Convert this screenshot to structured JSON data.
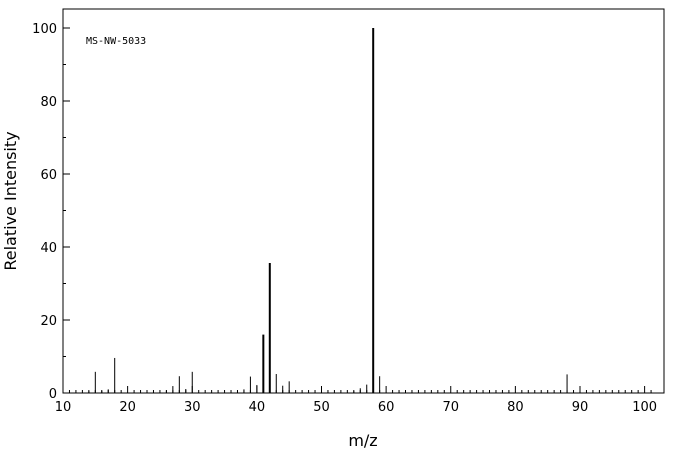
{
  "chart_data": {
    "type": "bar",
    "annotation": "MS-NW-5033",
    "xlabel": "m/z",
    "ylabel": "Relative Intensity",
    "xlim": [
      10,
      103
    ],
    "ylim": [
      0,
      100
    ],
    "x_ticks": [
      10,
      20,
      30,
      40,
      50,
      60,
      70,
      80,
      90,
      100
    ],
    "y_ticks": [
      0,
      20,
      40,
      60,
      80,
      100
    ],
    "grid": false,
    "peaks": [
      {
        "mz": 14,
        "intensity": 0.5
      },
      {
        "mz": 15,
        "intensity": 5.8
      },
      {
        "mz": 16,
        "intensity": 0.6
      },
      {
        "mz": 17,
        "intensity": 1.0
      },
      {
        "mz": 18,
        "intensity": 9.6
      },
      {
        "mz": 26,
        "intensity": 0.7
      },
      {
        "mz": 27,
        "intensity": 1.9
      },
      {
        "mz": 28,
        "intensity": 4.6
      },
      {
        "mz": 29,
        "intensity": 1.1
      },
      {
        "mz": 30,
        "intensity": 5.8
      },
      {
        "mz": 37,
        "intensity": 0.5
      },
      {
        "mz": 38,
        "intensity": 1.0
      },
      {
        "mz": 39,
        "intensity": 4.5
      },
      {
        "mz": 40,
        "intensity": 2.2
      },
      {
        "mz": 41,
        "intensity": 16.0
      },
      {
        "mz": 42,
        "intensity": 35.6
      },
      {
        "mz": 43,
        "intensity": 5.2
      },
      {
        "mz": 44,
        "intensity": 2.0
      },
      {
        "mz": 45,
        "intensity": 3.2
      },
      {
        "mz": 55,
        "intensity": 0.5
      },
      {
        "mz": 56,
        "intensity": 1.3
      },
      {
        "mz": 57,
        "intensity": 2.3
      },
      {
        "mz": 58,
        "intensity": 100
      },
      {
        "mz": 59,
        "intensity": 4.6
      },
      {
        "mz": 88,
        "intensity": 5.1
      }
    ]
  }
}
